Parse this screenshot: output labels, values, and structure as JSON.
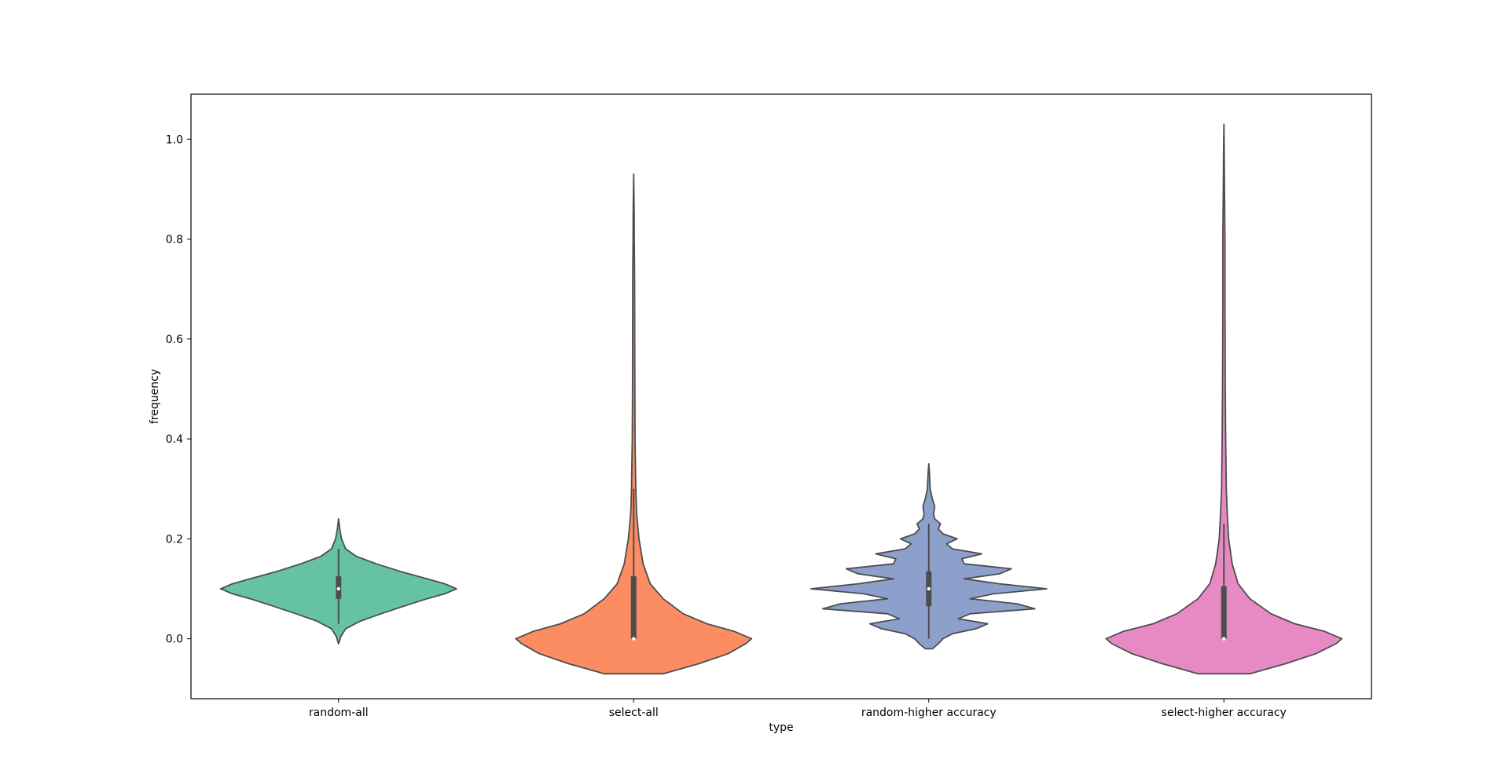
{
  "chart_data": {
    "type": "violin",
    "xlabel": "type",
    "ylabel": "frequency",
    "categories": [
      "random-all",
      "select-all",
      "random-higher accuracy",
      "select-higher accuracy"
    ],
    "ylim": [
      -0.12,
      1.09
    ],
    "yticks": [
      0.0,
      0.2,
      0.4,
      0.6,
      0.8,
      1.0
    ],
    "ytick_labels": [
      "0.0",
      "0.2",
      "0.4",
      "0.6",
      "0.8",
      "1.0"
    ],
    "grid": false,
    "legend": "none",
    "colors": [
      "#66c2a5",
      "#fc8d62",
      "#8da0cb",
      "#e78ac3"
    ],
    "series": [
      {
        "category": "random-all",
        "color": "#66c2a5",
        "box": {
          "q1": 0.08,
          "median": 0.1,
          "q3": 0.125,
          "whisker_low": 0.03,
          "whisker_high": 0.18
        },
        "density": [
          [
            -0.01,
            0.0
          ],
          [
            0.005,
            0.02
          ],
          [
            0.02,
            0.06
          ],
          [
            0.035,
            0.18
          ],
          [
            0.05,
            0.36
          ],
          [
            0.065,
            0.55
          ],
          [
            0.08,
            0.75
          ],
          [
            0.09,
            0.9
          ],
          [
            0.1,
            1.0
          ],
          [
            0.11,
            0.9
          ],
          [
            0.12,
            0.75
          ],
          [
            0.135,
            0.52
          ],
          [
            0.15,
            0.32
          ],
          [
            0.165,
            0.15
          ],
          [
            0.18,
            0.06
          ],
          [
            0.2,
            0.025
          ],
          [
            0.22,
            0.01
          ],
          [
            0.24,
            0.0
          ]
        ]
      },
      {
        "category": "select-all",
        "color": "#fc8d62",
        "box": {
          "q1": 0.0,
          "median": 0.0,
          "q3": 0.125,
          "whisker_low": 0.0,
          "whisker_high": 0.3
        },
        "density": [
          [
            -0.07,
            0.25
          ],
          [
            -0.05,
            0.55
          ],
          [
            -0.03,
            0.8
          ],
          [
            -0.01,
            0.95
          ],
          [
            0.0,
            1.0
          ],
          [
            0.015,
            0.85
          ],
          [
            0.03,
            0.62
          ],
          [
            0.05,
            0.42
          ],
          [
            0.08,
            0.25
          ],
          [
            0.11,
            0.14
          ],
          [
            0.15,
            0.08
          ],
          [
            0.2,
            0.045
          ],
          [
            0.25,
            0.025
          ],
          [
            0.3,
            0.018
          ],
          [
            0.4,
            0.012
          ],
          [
            0.5,
            0.01
          ],
          [
            0.6,
            0.009
          ],
          [
            0.7,
            0.008
          ],
          [
            0.75,
            0.007
          ],
          [
            0.8,
            0.005
          ],
          [
            0.85,
            0.004
          ],
          [
            0.9,
            0.002
          ],
          [
            0.93,
            0.0
          ]
        ]
      },
      {
        "category": "random-higher accuracy",
        "color": "#8da0cb",
        "box": {
          "q1": 0.065,
          "median": 0.1,
          "q3": 0.135,
          "whisker_low": 0.0,
          "whisker_high": 0.23
        },
        "density": [
          [
            -0.02,
            0.03
          ],
          [
            -0.01,
            0.08
          ],
          [
            0.0,
            0.12
          ],
          [
            0.01,
            0.2
          ],
          [
            0.02,
            0.4
          ],
          [
            0.03,
            0.5
          ],
          [
            0.04,
            0.25
          ],
          [
            0.05,
            0.35
          ],
          [
            0.06,
            0.9
          ],
          [
            0.07,
            0.75
          ],
          [
            0.08,
            0.35
          ],
          [
            0.09,
            0.55
          ],
          [
            0.1,
            1.0
          ],
          [
            0.11,
            0.6
          ],
          [
            0.12,
            0.3
          ],
          [
            0.13,
            0.6
          ],
          [
            0.14,
            0.7
          ],
          [
            0.15,
            0.3
          ],
          [
            0.16,
            0.28
          ],
          [
            0.17,
            0.45
          ],
          [
            0.18,
            0.2
          ],
          [
            0.19,
            0.15
          ],
          [
            0.2,
            0.24
          ],
          [
            0.21,
            0.12
          ],
          [
            0.22,
            0.08
          ],
          [
            0.23,
            0.1
          ],
          [
            0.24,
            0.05
          ],
          [
            0.25,
            0.04
          ],
          [
            0.265,
            0.05
          ],
          [
            0.28,
            0.03
          ],
          [
            0.3,
            0.012
          ],
          [
            0.33,
            0.006
          ],
          [
            0.35,
            0.0
          ]
        ]
      },
      {
        "category": "select-higher accuracy",
        "color": "#e78ac3",
        "box": {
          "q1": 0.0,
          "median": 0.0,
          "q3": 0.105,
          "whisker_low": 0.0,
          "whisker_high": 0.23
        },
        "density": [
          [
            -0.07,
            0.22
          ],
          [
            -0.05,
            0.52
          ],
          [
            -0.03,
            0.78
          ],
          [
            -0.01,
            0.95
          ],
          [
            0.0,
            1.0
          ],
          [
            0.015,
            0.85
          ],
          [
            0.03,
            0.6
          ],
          [
            0.05,
            0.4
          ],
          [
            0.08,
            0.22
          ],
          [
            0.11,
            0.12
          ],
          [
            0.15,
            0.07
          ],
          [
            0.2,
            0.04
          ],
          [
            0.25,
            0.028
          ],
          [
            0.3,
            0.02
          ],
          [
            0.4,
            0.015
          ],
          [
            0.5,
            0.012
          ],
          [
            0.6,
            0.01
          ],
          [
            0.7,
            0.009
          ],
          [
            0.8,
            0.009
          ],
          [
            0.85,
            0.007
          ],
          [
            0.9,
            0.005
          ],
          [
            0.95,
            0.004
          ],
          [
            1.0,
            0.002
          ],
          [
            1.03,
            0.0
          ]
        ]
      }
    ]
  }
}
